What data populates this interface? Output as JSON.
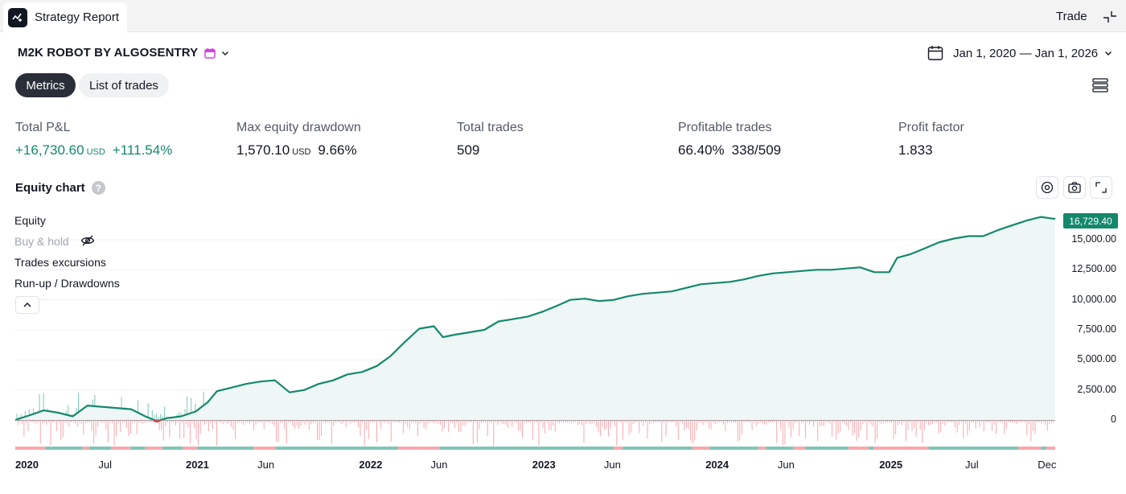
{
  "topbar": {
    "tab_title": "Strategy Report",
    "trade_label": "Trade"
  },
  "strategy": {
    "name": "M2K ROBOT BY ALGOSENTRY",
    "date_range": "Jan 1, 2020 — Jan 1, 2026"
  },
  "tabs": {
    "metrics": "Metrics",
    "list_of_trades": "List of trades"
  },
  "metrics": {
    "total_pnl": {
      "label": "Total P&L",
      "value": "+16,730.60",
      "unit": "USD",
      "percent": "+111.54%"
    },
    "max_drawdown": {
      "label": "Max equity drawdown",
      "value": "1,570.10",
      "unit": "USD",
      "percent": "9.66%"
    },
    "total_trades": {
      "label": "Total trades",
      "value": "509"
    },
    "profitable_trades": {
      "label": "Profitable trades",
      "percent": "66.40%",
      "ratio": "338/509"
    },
    "profit_factor": {
      "label": "Profit factor",
      "value": "1.833"
    }
  },
  "equity_chart": {
    "title": "Equity chart",
    "help": "?",
    "legend": {
      "equity": "Equity",
      "buy_hold": "Buy & hold",
      "excursions": "Trades excursions",
      "runup": "Run-up / Drawdowns"
    },
    "last_value_label": "16,729.40",
    "colors": {
      "equity": "#15886c",
      "fill": "#eef7f5",
      "drawdown": "#f23645",
      "runup_bar": "#7fc6b6",
      "drawdown_bar": "#f7a8ae"
    },
    "icons": [
      "gear-icon",
      "camera-icon",
      "expand-icon"
    ]
  },
  "chart_data": {
    "type": "area",
    "y_axis": {
      "range": [
        -300,
        17300
      ],
      "ticks": [
        "0",
        "2,500.00",
        "5,000.00",
        "7,500.00",
        "10,000.00",
        "12,500.00",
        "15,000.00"
      ],
      "tick_values": [
        0,
        2500,
        5000,
        7500,
        10000,
        12500,
        15000
      ]
    },
    "x_axis": {
      "range": [
        "2020-01-01",
        "2025-12-31"
      ],
      "ticks": [
        {
          "label": "2020",
          "date": "2020-01-01",
          "bold": true
        },
        {
          "label": "Jul",
          "date": "2020-07-01",
          "bold": false
        },
        {
          "label": "2021",
          "date": "2021-01-01",
          "bold": true
        },
        {
          "label": "Jun",
          "date": "2021-06-01",
          "bold": false
        },
        {
          "label": "2022",
          "date": "2022-01-01",
          "bold": true
        },
        {
          "label": "Jun",
          "date": "2022-06-01",
          "bold": false
        },
        {
          "label": "2023",
          "date": "2023-01-01",
          "bold": true
        },
        {
          "label": "Jun",
          "date": "2023-06-01",
          "bold": false
        },
        {
          "label": "2024",
          "date": "2024-01-01",
          "bold": true
        },
        {
          "label": "Jun",
          "date": "2024-06-01",
          "bold": false
        },
        {
          "label": "2025",
          "date": "2025-01-01",
          "bold": true
        },
        {
          "label": "Jul",
          "date": "2025-07-01",
          "bold": false
        },
        {
          "label": "Dec",
          "date": "2025-12-01",
          "bold": false
        }
      ]
    },
    "series": [
      {
        "name": "Equity",
        "points": [
          [
            "2020-01-01",
            0
          ],
          [
            "2020-02-01",
            400
          ],
          [
            "2020-03-01",
            800
          ],
          [
            "2020-04-01",
            600
          ],
          [
            "2020-05-01",
            300
          ],
          [
            "2020-06-01",
            1200
          ],
          [
            "2020-07-01",
            1100
          ],
          [
            "2020-08-01",
            1000
          ],
          [
            "2020-09-01",
            900
          ],
          [
            "2020-10-01",
            300
          ],
          [
            "2020-10-25",
            -100
          ],
          [
            "2020-11-15",
            150
          ],
          [
            "2020-12-15",
            300
          ],
          [
            "2021-01-15",
            700
          ],
          [
            "2021-02-10",
            1500
          ],
          [
            "2021-03-01",
            2400
          ],
          [
            "2021-04-01",
            2700
          ],
          [
            "2021-05-01",
            3000
          ],
          [
            "2021-06-01",
            3200
          ],
          [
            "2021-07-01",
            3300
          ],
          [
            "2021-08-01",
            2300
          ],
          [
            "2021-09-01",
            2500
          ],
          [
            "2021-10-01",
            3000
          ],
          [
            "2021-11-01",
            3300
          ],
          [
            "2021-12-01",
            3800
          ],
          [
            "2022-01-01",
            4000
          ],
          [
            "2022-02-01",
            4500
          ],
          [
            "2022-03-01",
            5300
          ],
          [
            "2022-04-01",
            6500
          ],
          [
            "2022-05-01",
            7600
          ],
          [
            "2022-06-01",
            7800
          ],
          [
            "2022-06-20",
            6900
          ],
          [
            "2022-07-15",
            7100
          ],
          [
            "2022-08-15",
            7300
          ],
          [
            "2022-09-15",
            7500
          ],
          [
            "2022-10-15",
            8200
          ],
          [
            "2022-11-15",
            8400
          ],
          [
            "2022-12-15",
            8600
          ],
          [
            "2023-01-15",
            9000
          ],
          [
            "2023-02-15",
            9500
          ],
          [
            "2023-03-15",
            10000
          ],
          [
            "2023-04-15",
            10100
          ],
          [
            "2023-05-15",
            9900
          ],
          [
            "2023-06-15",
            10000
          ],
          [
            "2023-07-15",
            10300
          ],
          [
            "2023-08-15",
            10500
          ],
          [
            "2023-09-15",
            10600
          ],
          [
            "2023-10-15",
            10700
          ],
          [
            "2023-11-15",
            11000
          ],
          [
            "2023-12-15",
            11300
          ],
          [
            "2024-01-15",
            11400
          ],
          [
            "2024-02-15",
            11500
          ],
          [
            "2024-03-15",
            11700
          ],
          [
            "2024-04-15",
            12000
          ],
          [
            "2024-05-15",
            12200
          ],
          [
            "2024-06-15",
            12300
          ],
          [
            "2024-07-15",
            12400
          ],
          [
            "2024-08-15",
            12500
          ],
          [
            "2024-09-15",
            12500
          ],
          [
            "2024-10-15",
            12600
          ],
          [
            "2024-11-15",
            12700
          ],
          [
            "2024-12-15",
            12300
          ],
          [
            "2025-01-15",
            12300
          ],
          [
            "2025-02-01",
            13500
          ],
          [
            "2025-03-01",
            13800
          ],
          [
            "2025-04-01",
            14300
          ],
          [
            "2025-05-01",
            14800
          ],
          [
            "2025-06-01",
            15100
          ],
          [
            "2025-07-01",
            15300
          ],
          [
            "2025-08-01",
            15300
          ],
          [
            "2025-09-01",
            15800
          ],
          [
            "2025-10-01",
            16200
          ],
          [
            "2025-11-01",
            16600
          ],
          [
            "2025-12-01",
            16900
          ],
          [
            "2025-12-31",
            16729.4
          ]
        ]
      }
    ]
  }
}
